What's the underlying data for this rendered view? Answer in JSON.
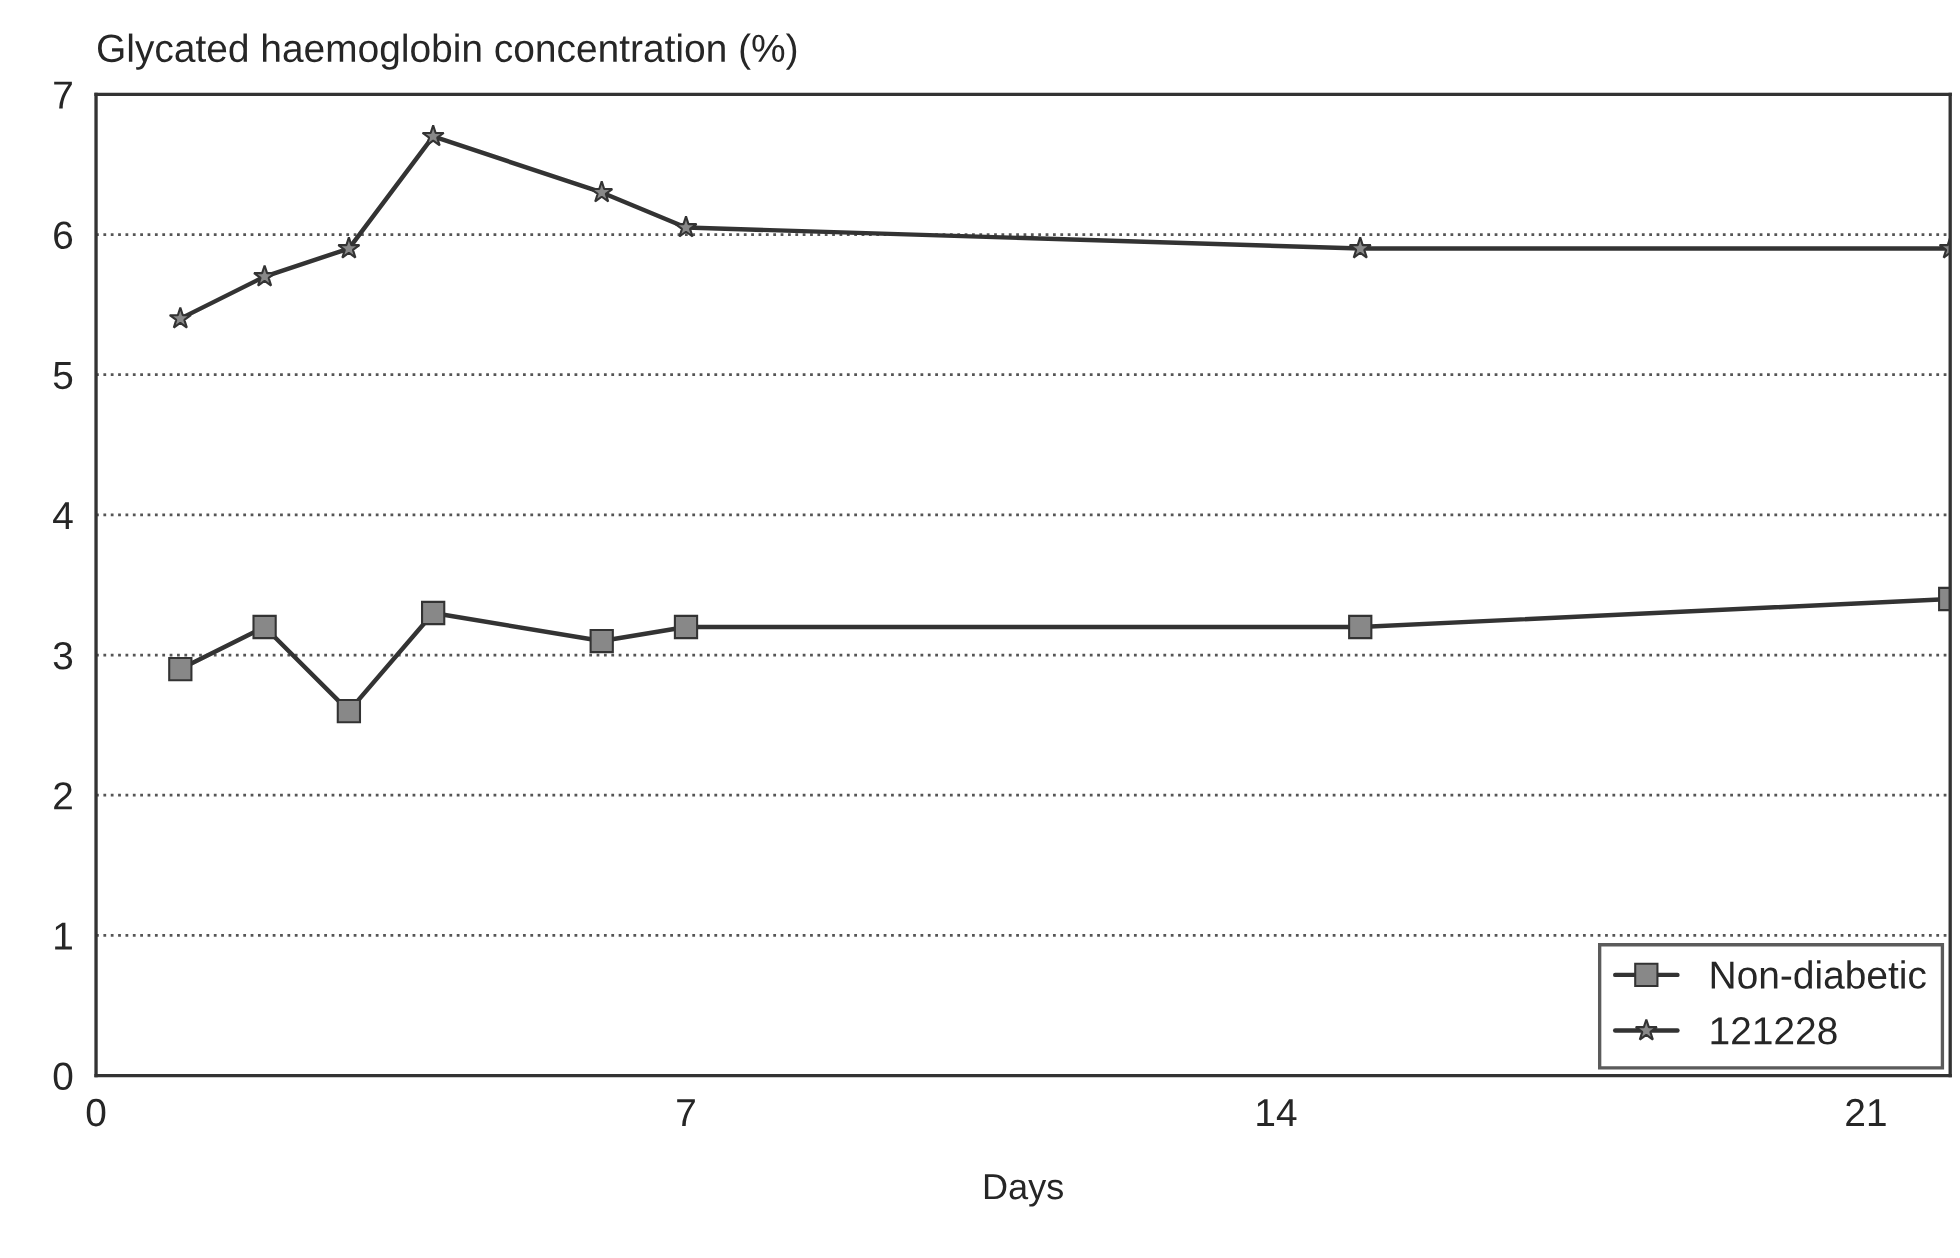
{
  "chart_data": {
    "type": "line",
    "ylabel": "Glycated haemoglobin concentration (%)",
    "xlabel": "Days",
    "x": [
      1,
      2,
      3,
      4,
      6,
      7,
      15,
      22
    ],
    "series": [
      {
        "name": "Non-diabetic",
        "color": "#333333",
        "marker": "square",
        "values": [
          2.9,
          3.2,
          2.6,
          3.3,
          3.1,
          3.2,
          3.2,
          3.4
        ]
      },
      {
        "name": "121228",
        "color": "#333333",
        "marker": "star",
        "values": [
          5.4,
          5.7,
          5.9,
          6.7,
          6.3,
          6.05,
          5.9,
          5.9
        ]
      }
    ],
    "xlim": [
      0,
      22
    ],
    "xticks": [
      0,
      7,
      14,
      21
    ],
    "ylim": [
      0,
      7
    ],
    "yticks": [
      0,
      1,
      2,
      3,
      4,
      5,
      6,
      7
    ],
    "grid": "y",
    "legend": "bottom right",
    "line_style": "solid"
  }
}
